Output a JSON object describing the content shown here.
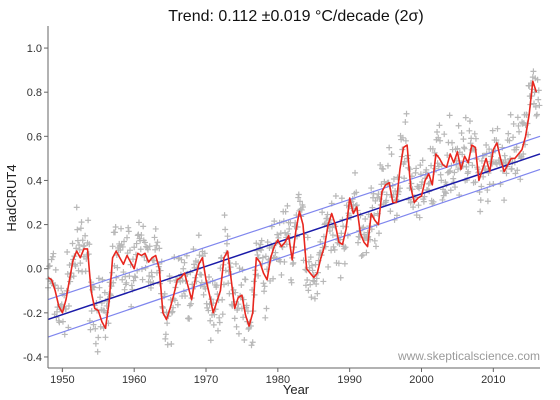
{
  "chart_data": {
    "type": "line",
    "title": "Trend: 0.112 ±0.019 °C/decade (2σ)",
    "xlabel": "Year",
    "ylabel": "HadCRUT4",
    "xlim": [
      1948,
      2016.5
    ],
    "ylim": [
      -0.45,
      1.1
    ],
    "x_ticks": [
      1950,
      1960,
      1970,
      1980,
      1990,
      2000,
      2010
    ],
    "y_ticks": [
      -0.4,
      -0.2,
      0.0,
      0.2,
      0.4,
      0.6,
      0.8,
      1.0
    ],
    "grid": false,
    "watermark": "www.skepticalscience.com",
    "colors": {
      "smoothed": "#e8261e",
      "trend": "#1a1aa8",
      "bounds": "#7f86ee",
      "monthly": "#b8b8b8"
    },
    "trend": {
      "slope_per_decade": 0.112,
      "uncertainty_2sigma": 0.019,
      "start": [
        1948,
        -0.23
      ],
      "end": [
        2016.5,
        0.52
      ],
      "upper_start": [
        1948,
        -0.14
      ],
      "upper_end": [
        2016.5,
        0.6
      ],
      "lower_start": [
        1948,
        -0.31
      ],
      "lower_end": [
        2016.5,
        0.45
      ]
    },
    "series": [
      {
        "type": "smoothed",
        "x": [
          1948.0,
          1948.5,
          1949.0,
          1949.5,
          1950.0,
          1950.5,
          1951.0,
          1951.5,
          1952.0,
          1952.5,
          1953.0,
          1953.5,
          1954.0,
          1954.5,
          1955.0,
          1955.5,
          1956.0,
          1956.5,
          1957.0,
          1957.5,
          1958.0,
          1958.5,
          1959.0,
          1959.5,
          1960.0,
          1960.5,
          1961.0,
          1961.5,
          1962.0,
          1962.5,
          1963.0,
          1963.5,
          1964.0,
          1964.5,
          1965.0,
          1965.5,
          1966.0,
          1966.5,
          1967.0,
          1967.5,
          1968.0,
          1968.5,
          1969.0,
          1969.5,
          1970.0,
          1970.5,
          1971.0,
          1971.5,
          1972.0,
          1972.5,
          1973.0,
          1973.5,
          1974.0,
          1974.5,
          1975.0,
          1975.5,
          1976.0,
          1976.5,
          1977.0,
          1977.5,
          1978.0,
          1978.5,
          1979.0,
          1979.5,
          1980.0,
          1980.5,
          1981.0,
          1981.5,
          1982.0,
          1982.5,
          1983.0,
          1983.5,
          1984.0,
          1984.5,
          1985.0,
          1985.5,
          1986.0,
          1986.5,
          1987.0,
          1987.5,
          1988.0,
          1988.5,
          1989.0,
          1989.5,
          1990.0,
          1990.5,
          1991.0,
          1991.5,
          1992.0,
          1992.5,
          1993.0,
          1993.5,
          1994.0,
          1994.5,
          1995.0,
          1995.5,
          1996.0,
          1996.5,
          1997.0,
          1997.5,
          1998.0,
          1998.5,
          1999.0,
          1999.5,
          2000.0,
          2000.5,
          2001.0,
          2001.5,
          2002.0,
          2002.5,
          2003.0,
          2003.5,
          2004.0,
          2004.5,
          2005.0,
          2005.5,
          2006.0,
          2006.5,
          2007.0,
          2007.5,
          2008.0,
          2008.5,
          2009.0,
          2009.5,
          2010.0,
          2010.5,
          2011.0,
          2011.5,
          2012.0,
          2012.5,
          2013.0,
          2013.5,
          2014.0,
          2014.5,
          2015.0,
          2015.5,
          2016.0
        ],
        "y": [
          -0.04,
          -0.05,
          -0.1,
          -0.17,
          -0.2,
          -0.14,
          -0.05,
          0.04,
          0.08,
          0.05,
          0.09,
          0.09,
          -0.1,
          -0.18,
          -0.19,
          -0.24,
          -0.27,
          -0.15,
          0.05,
          0.08,
          0.05,
          0.02,
          0.06,
          0.03,
          0.0,
          0.07,
          0.06,
          0.07,
          0.03,
          0.05,
          0.06,
          0.0,
          -0.2,
          -0.23,
          -0.18,
          -0.12,
          -0.05,
          -0.04,
          -0.02,
          -0.08,
          -0.14,
          -0.05,
          0.02,
          0.05,
          -0.05,
          -0.12,
          -0.2,
          -0.15,
          -0.1,
          0.05,
          0.08,
          -0.05,
          -0.18,
          -0.13,
          -0.12,
          -0.21,
          -0.26,
          -0.2,
          0.05,
          0.03,
          -0.02,
          -0.05,
          0.05,
          0.1,
          0.13,
          0.1,
          0.12,
          0.15,
          0.04,
          0.17,
          0.26,
          0.2,
          0.0,
          -0.02,
          -0.04,
          -0.02,
          0.05,
          0.1,
          0.2,
          0.25,
          0.2,
          0.12,
          0.11,
          0.18,
          0.32,
          0.25,
          0.28,
          0.16,
          0.12,
          0.1,
          0.25,
          0.22,
          0.2,
          0.35,
          0.38,
          0.39,
          0.3,
          0.3,
          0.45,
          0.55,
          0.56,
          0.37,
          0.3,
          0.32,
          0.33,
          0.4,
          0.43,
          0.38,
          0.52,
          0.5,
          0.47,
          0.46,
          0.52,
          0.48,
          0.53,
          0.45,
          0.51,
          0.48,
          0.56,
          0.55,
          0.4,
          0.45,
          0.5,
          0.44,
          0.54,
          0.57,
          0.5,
          0.44,
          0.47,
          0.5,
          0.5,
          0.52,
          0.54,
          0.6,
          0.7,
          0.85,
          0.8
        ]
      }
    ]
  }
}
